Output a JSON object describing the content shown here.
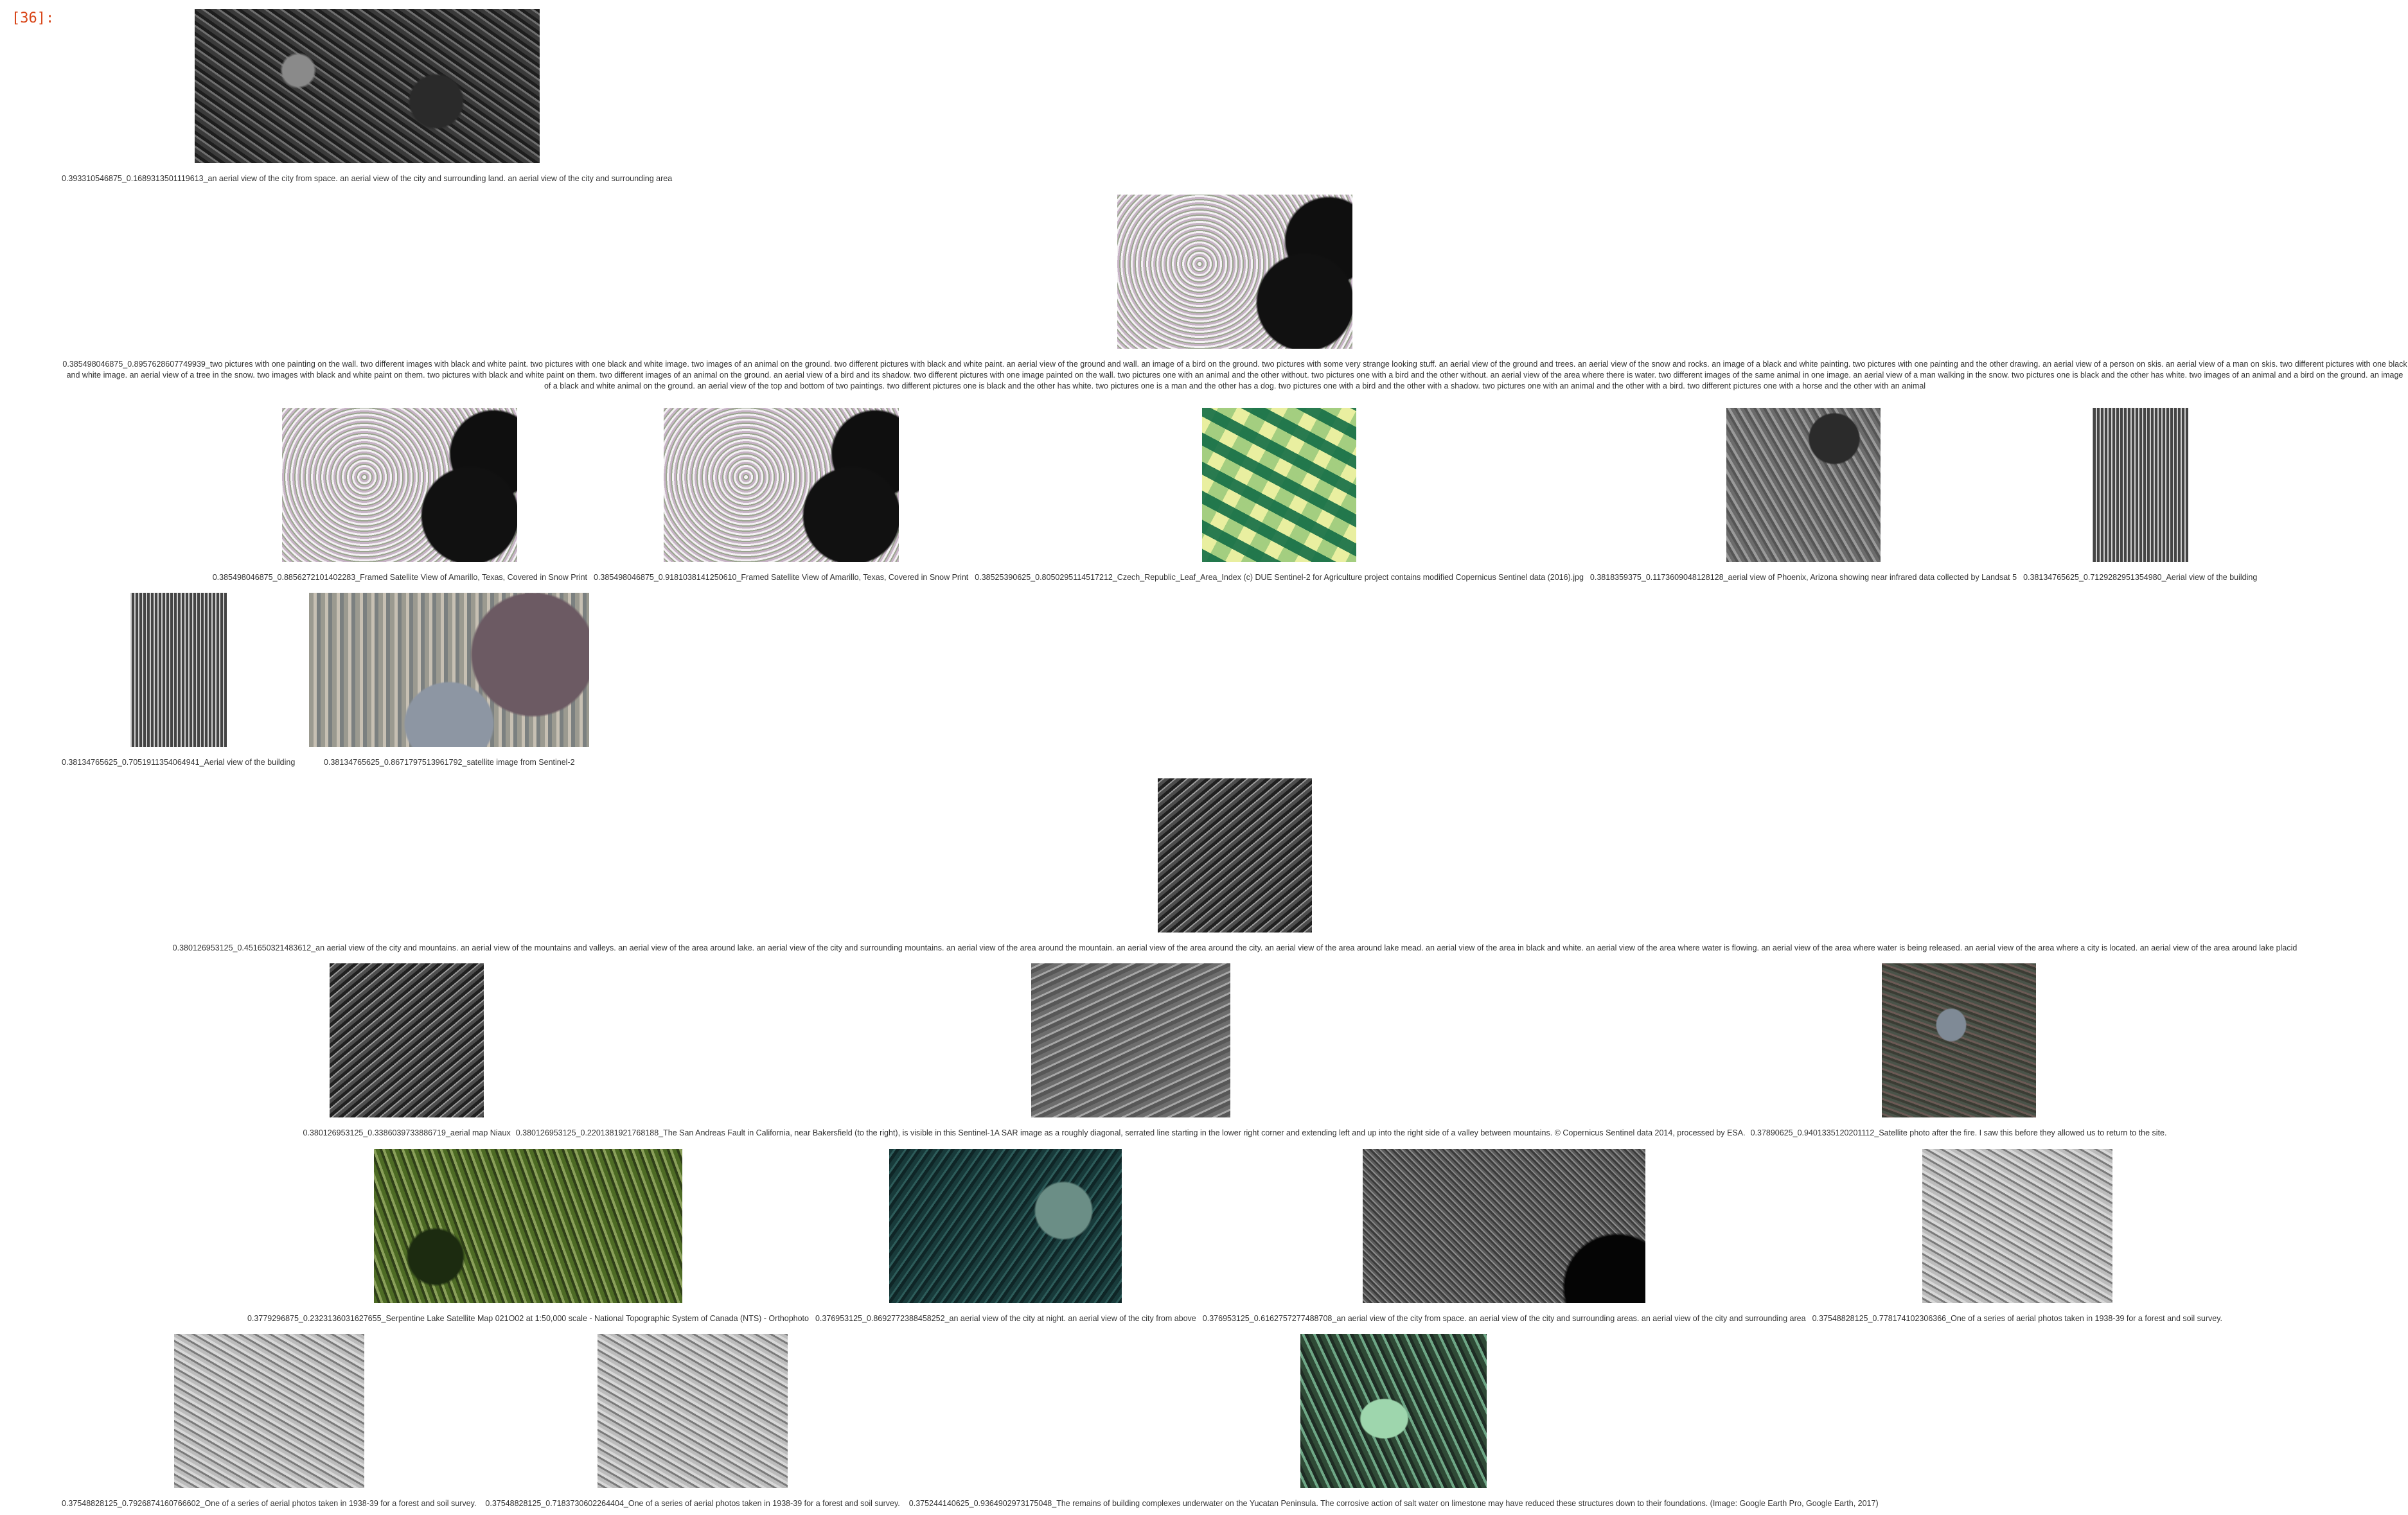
{
  "cell_prompt": "[36]:",
  "rows": [
    [
      {
        "caption": "0.393310546875_0.1689313501119613_an aerial view of the city from space. an aerial view of the city and surrounding land. an aerial view of the city and surrounding area",
        "icon": "satellite-image"
      }
    ],
    [
      {
        "caption": "0.385498046875_0.8957628607749939_two pictures with one painting on the wall. two different images with black and white paint. two pictures with one black and white image. two images of an animal on the ground. two different pictures with black and white paint. an aerial view of the ground and wall. an image of a bird on the ground. two pictures with some very strange looking stuff. an aerial view of the ground and trees. an aerial view of the snow and rocks. an image of a black and white painting. two pictures with one painting and the other drawing. an aerial view of a person on skis. an aerial view of a man on skis. two different pictures with one black and white image. an aerial view of a tree in the snow. two images with black and white paint on them. two pictures with black and white paint on them. two different images of an animal on the ground. an aerial view of a bird and its shadow. two different pictures with one image painted on the wall. two pictures one with an animal and the other without. two pictures one with a bird and the other without. an aerial view of the area where there is water. two different images of the same animal in one image. an aerial view of a man walking in the snow. two pictures one is black and the other has white. two images of an animal and a bird on the ground. an image of a black and white animal on the ground. an aerial view of the top and bottom of two paintings. two different pictures one is black and the other has white. two pictures one is a man and the other has a dog. two pictures one with a bird and the other with a shadow. two pictures one with an animal and the other with a bird. two different pictures one with a horse and the other with an animal",
        "icon": "satellite-image"
      }
    ],
    [
      {
        "caption": "0.385498046875_0.8856272101402283_Framed Satellite View of Amarillo, Texas, Covered in Snow Print",
        "icon": "satellite-image"
      },
      {
        "caption": "0.385498046875_0.9181038141250610_Framed Satellite View of Amarillo, Texas, Covered in Snow Print",
        "icon": "satellite-image"
      },
      {
        "caption": "0.38525390625_0.8050295114517212_Czech_Republic_Leaf_Area_Index (c) DUE Sentinel-2 for Agriculture project contains modified Copernicus Sentinel data (2016).jpg",
        "icon": "satellite-image"
      },
      {
        "caption": "0.3818359375_0.1173609048128128_aerial view of Phoenix, Arizona showing near infrared data collected by Landsat 5",
        "icon": "satellite-image"
      },
      {
        "caption": "0.38134765625_0.7129282951354980_Aerial view of the building",
        "icon": "satellite-image"
      }
    ],
    [
      {
        "caption": "0.38134765625_0.7051911354064941_Aerial view of the building",
        "icon": "satellite-image"
      },
      {
        "caption": "0.38134765625_0.8671797513961792_satellite image from Sentinel-2",
        "icon": "satellite-image"
      }
    ],
    [
      {
        "caption": "0.380126953125_0.451650321483612_an aerial view of the city and mountains. an aerial view of the mountains and valleys. an aerial view of the area around lake. an aerial view of the city and surrounding mountains. an aerial view of the area around the mountain. an aerial view of the area around the city. an aerial view of the area around lake mead. an aerial view of the area in black and white. an aerial view of the area where water is flowing. an aerial view of the area where water is being released. an aerial view of the area where a city is located. an aerial view of the area around lake placid",
        "icon": "satellite-image"
      }
    ],
    [
      {
        "caption": "0.380126953125_0.3386039733886719_aerial map Niaux",
        "icon": "satellite-image"
      },
      {
        "caption": "0.380126953125_0.2201381921768188_The San Andreas Fault in California, near Bakersfield (to the right), is visible in this Sentinel-1A SAR image as a roughly diagonal, serrated line starting in the lower right corner and extending left and up into the right side of a valley between mountains. © Copernicus Sentinel data 2014, processed by ESA.",
        "icon": "satellite-image"
      },
      {
        "caption": "0.37890625_0.9401335120201112_Satellite photo after the fire. I saw this before they allowed us to return to the site.",
        "icon": "satellite-image"
      }
    ],
    [
      {
        "caption": "0.3779296875_0.2323136031627655_Serpentine Lake Satellite Map 021O02 at 1:50,000 scale - National Topographic System of Canada (NTS) - Orthophoto",
        "icon": "satellite-image"
      },
      {
        "caption": "0.376953125_0.8692772388458252_an aerial view of the city at night. an aerial view of the city from above",
        "icon": "satellite-image"
      },
      {
        "caption": "0.376953125_0.6162757277488708_an aerial view of the city from space. an aerial view of the city and surrounding areas. an aerial view of the city and surrounding area",
        "icon": "satellite-image"
      },
      {
        "caption": "0.37548828125_0.778174102306366_One of a series of aerial photos taken in 1938-39 for a forest and soil survey.",
        "icon": "satellite-image"
      }
    ],
    [
      {
        "caption": "0.37548828125_0.7926874160766602_One of a series of aerial photos taken in 1938-39 for a forest and soil survey.",
        "icon": "satellite-image"
      },
      {
        "caption": "0.37548828125_0.7183730602264404_One of a series of aerial photos taken in 1938-39 for a forest and soil survey.",
        "icon": "satellite-image"
      },
      {
        "caption": "0.375244140625_0.9364902973175048_The remains of building complexes underwater on the Yucatan Peninsula. The corrosive action of salt water on limestone may have reduced these structures down to their foundations. (Image: Google Earth Pro, Google Earth, 2017)",
        "icon": "satellite-image"
      }
    ]
  ]
}
